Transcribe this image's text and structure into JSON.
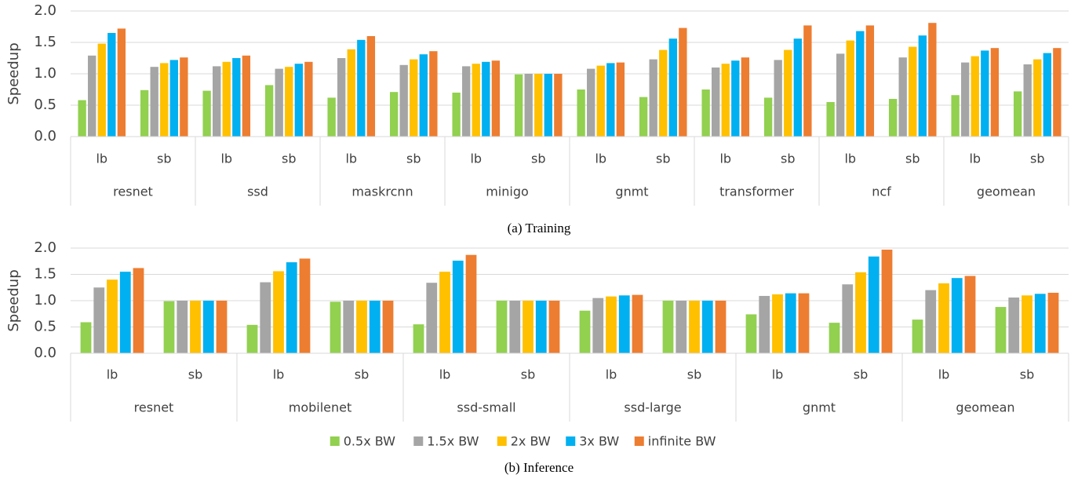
{
  "chart_data": [
    {
      "type": "bar",
      "caption": "(a) Training",
      "y_label": "Speedup",
      "categories": [
        "lb",
        "sb",
        "lb",
        "sb",
        "lb",
        "sb",
        "lb",
        "sb",
        "lb",
        "sb",
        "lb",
        "sb",
        "lb",
        "sb",
        "lb",
        "sb"
      ],
      "groups": [
        "resnet",
        "ssd",
        "maskrcnn",
        "minigo",
        "gnmt",
        "transformer",
        "ncf",
        "geomean"
      ],
      "ylim": [
        0,
        2
      ],
      "yticks": [
        {
          "value": 0,
          "label": "0.0"
        },
        0.5,
        {
          "value": 1,
          "label": "1.0"
        },
        1.5,
        {
          "value": 2,
          "label": "2.0"
        }
      ],
      "grid": true,
      "series": [
        {
          "color": "#92d050",
          "values": [
            0.58,
            0.74,
            0.73,
            0.82,
            0.62,
            0.71,
            0.7,
            0.99,
            0.75,
            0.63,
            0.75,
            0.62,
            0.55,
            0.6,
            0.66,
            0.72
          ]
        },
        {
          "color": "#a5a5a5",
          "values": [
            1.29,
            1.11,
            1.12,
            1.08,
            1.25,
            1.14,
            1.12,
            1.0,
            1.08,
            1.23,
            1.1,
            1.22,
            1.32,
            1.26,
            1.18,
            1.15
          ]
        },
        {
          "color": "#ffc000",
          "values": [
            1.48,
            1.17,
            1.19,
            1.11,
            1.39,
            1.23,
            1.16,
            1.0,
            1.13,
            1.38,
            1.16,
            1.38,
            1.53,
            1.43,
            1.28,
            1.23
          ]
        },
        {
          "color": "#00b0f0",
          "values": [
            1.65,
            1.22,
            1.25,
            1.16,
            1.54,
            1.31,
            1.19,
            1.0,
            1.17,
            1.56,
            1.21,
            1.56,
            1.68,
            1.61,
            1.37,
            1.33
          ]
        },
        {
          "color": "#ed7d31",
          "values": [
            1.72,
            1.26,
            1.29,
            1.19,
            1.6,
            1.36,
            1.21,
            1.0,
            1.18,
            1.73,
            1.26,
            1.77,
            1.77,
            1.81,
            1.41,
            1.41
          ]
        }
      ]
    },
    {
      "type": "bar",
      "caption": "(b) Inference",
      "y_label": "Speedup",
      "categories": [
        "lb",
        "sb",
        "lb",
        "sb",
        "lb",
        "sb",
        "lb",
        "sb",
        "lb",
        "sb",
        "lb",
        "sb"
      ],
      "groups": [
        "resnet",
        "mobilenet",
        "ssd-small",
        "ssd-large",
        "gnmt",
        "geomean"
      ],
      "ylim": [
        0,
        2
      ],
      "yticks": [
        {
          "value": 0,
          "label": "0.0"
        },
        0.5,
        {
          "value": 1,
          "label": "1.0"
        },
        1.5,
        {
          "value": 2,
          "label": "2.0"
        }
      ],
      "grid": true,
      "series": [
        {
          "name": "0.5x BW",
          "color": "#92d050",
          "values": [
            0.59,
            0.99,
            0.54,
            0.98,
            0.55,
            1.0,
            0.81,
            1.0,
            0.74,
            0.58,
            0.64,
            0.88
          ]
        },
        {
          "name": "1.5x BW",
          "color": "#a5a5a5",
          "values": [
            1.25,
            1.0,
            1.35,
            1.0,
            1.34,
            1.0,
            1.05,
            1.0,
            1.09,
            1.31,
            1.2,
            1.06
          ]
        },
        {
          "name": "2x BW",
          "color": "#ffc000",
          "values": [
            1.4,
            1.0,
            1.56,
            1.0,
            1.55,
            1.0,
            1.08,
            1.0,
            1.12,
            1.54,
            1.33,
            1.1
          ]
        },
        {
          "name": "3x BW",
          "color": "#00b0f0",
          "values": [
            1.55,
            1.0,
            1.73,
            1.0,
            1.76,
            1.0,
            1.1,
            1.0,
            1.14,
            1.84,
            1.43,
            1.13
          ]
        },
        {
          "name": "infinite BW",
          "color": "#ed7d31",
          "values": [
            1.62,
            1.0,
            1.8,
            1.0,
            1.87,
            1.0,
            1.11,
            1.0,
            1.14,
            1.97,
            1.47,
            1.15
          ]
        }
      ]
    }
  ]
}
